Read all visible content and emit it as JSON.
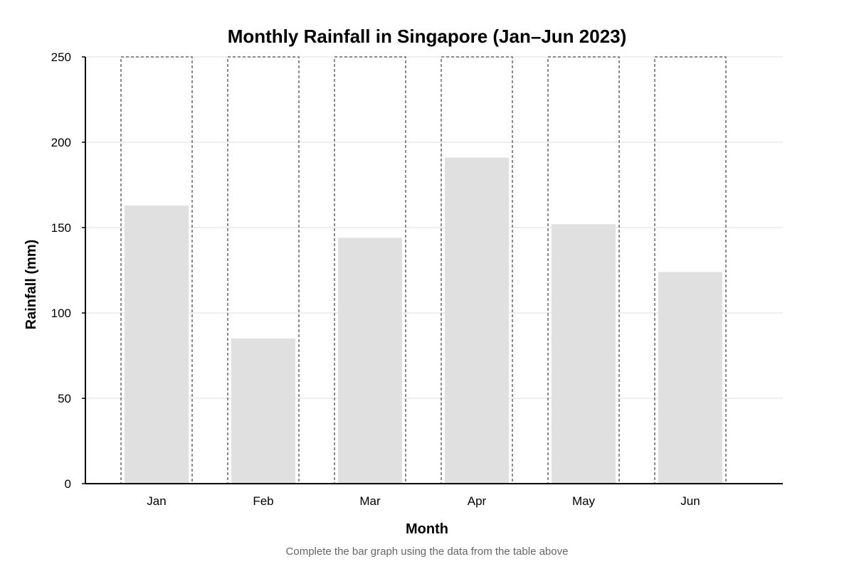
{
  "chart_data": {
    "type": "bar",
    "title": "Monthly Rainfall in Singapore (Jan–Jun 2023)",
    "xlabel": "Month",
    "ylabel": "Rainfall (mm)",
    "categories": [
      "Jan",
      "Feb",
      "Mar",
      "Apr",
      "May",
      "Jun"
    ],
    "values": [
      163,
      85,
      144,
      191,
      152,
      124
    ],
    "placeholder_max": 250,
    "ylim": [
      0,
      300
    ],
    "yticks": [
      0,
      50,
      100,
      150,
      200,
      250,
      300
    ],
    "grid": true,
    "bar_color": "#e0e0e0",
    "placeholder_color": "#666666",
    "grid_color": "#dddddd",
    "caption": "Complete the bar graph using the data from the table above"
  }
}
